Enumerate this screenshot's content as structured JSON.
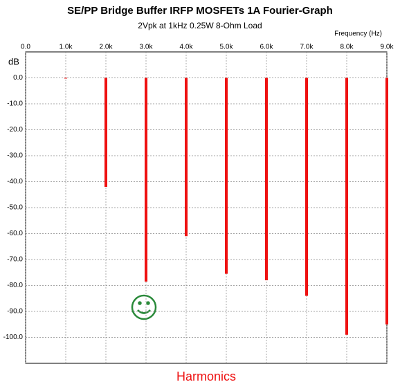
{
  "chart_data": {
    "type": "bar",
    "title": "SE/PP Bridge Buffer IRFP MOSFETs 1A Fourier-Graph",
    "subtitle": "2Vpk at 1kHz 0.25W 8-Ohm Load",
    "x_label": "Frequency  (Hz)",
    "y_label": "dB",
    "annotation": "Harmonics",
    "x": [
      1000,
      2000,
      3000,
      4000,
      5000,
      6000,
      7000,
      8000,
      9000
    ],
    "values": [
      0,
      -42,
      -78.5,
      -61,
      -75.5,
      -78,
      -84,
      -99,
      -95
    ],
    "color": "#ee1111",
    "xlim": [
      0,
      9000
    ],
    "xticks": [
      {
        "value": 0,
        "label": "0.0"
      },
      {
        "value": 1000,
        "label": "1.0k"
      },
      {
        "value": 2000,
        "label": "2.0k"
      },
      {
        "value": 3000,
        "label": "3.0k"
      },
      {
        "value": 4000,
        "label": "4.0k"
      },
      {
        "value": 5000,
        "label": "5.0k"
      },
      {
        "value": 6000,
        "label": "6.0k"
      },
      {
        "value": 7000,
        "label": "7.0k"
      },
      {
        "value": 8000,
        "label": "8.0k"
      },
      {
        "value": 9000,
        "label": "9.0k"
      }
    ],
    "ylim": [
      -110,
      10
    ],
    "yticks": [
      {
        "value": 0,
        "label": "0.0"
      },
      {
        "value": -10,
        "label": "-10.0"
      },
      {
        "value": -20,
        "label": "-20.0"
      },
      {
        "value": -30,
        "label": "-30.0"
      },
      {
        "value": -40,
        "label": "-40.0"
      },
      {
        "value": -50,
        "label": "-50.0"
      },
      {
        "value": -60,
        "label": "-60.0"
      },
      {
        "value": -70,
        "label": "-70.0"
      },
      {
        "value": -80,
        "label": "-80.0"
      },
      {
        "value": -90,
        "label": "-90.0"
      },
      {
        "value": -100,
        "label": "-100.0"
      }
    ],
    "grid": true
  }
}
